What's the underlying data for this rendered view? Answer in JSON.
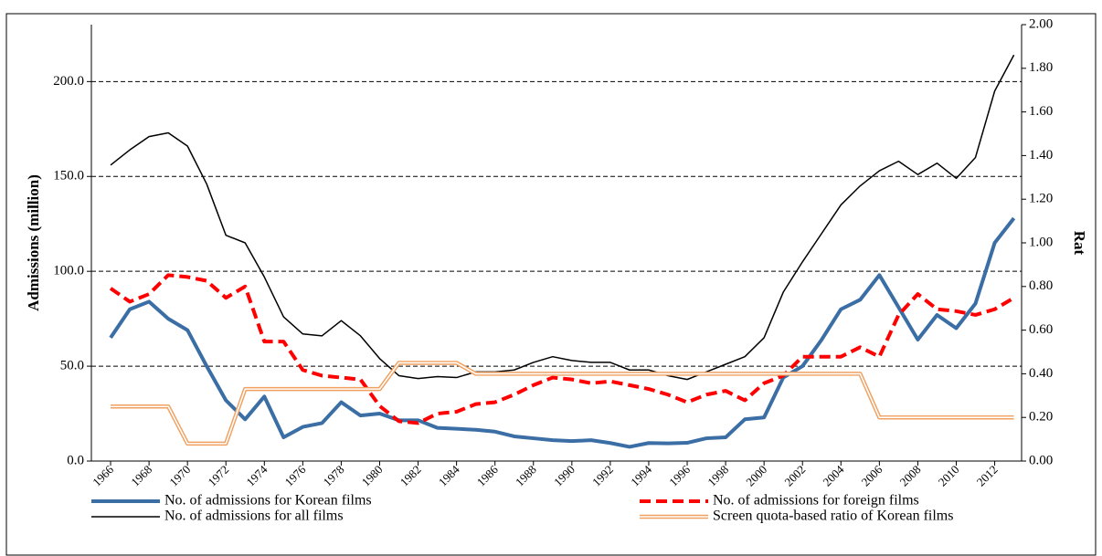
{
  "chart_data": {
    "type": "line",
    "y_label": "Admissions (million)",
    "y2_label": "Rat",
    "x": [
      1966,
      1967,
      1968,
      1969,
      1970,
      1971,
      1972,
      1973,
      1974,
      1975,
      1976,
      1977,
      1978,
      1979,
      1980,
      1981,
      1982,
      1983,
      1984,
      1985,
      1986,
      1987,
      1988,
      1989,
      1990,
      1991,
      1992,
      1993,
      1994,
      1995,
      1996,
      1997,
      1998,
      1999,
      2000,
      2001,
      2002,
      2003,
      2004,
      2005,
      2006,
      2007,
      2008,
      2009,
      2010,
      2011,
      2012,
      2013
    ],
    "xlim": [
      1965,
      2013.4
    ],
    "xticks": [
      1966,
      1968,
      1970,
      1972,
      1974,
      1976,
      1978,
      1980,
      1982,
      1984,
      1986,
      1988,
      1990,
      1992,
      1994,
      1996,
      1998,
      2000,
      2002,
      2004,
      2006,
      2008,
      2010,
      2012
    ],
    "ylim": [
      0,
      230
    ],
    "yticks": [
      {
        "value": 0,
        "label": "0.0"
      },
      {
        "value": 50,
        "label": "50.0"
      },
      {
        "value": 100,
        "label": "100.0"
      },
      {
        "value": 150,
        "label": "150.0"
      },
      {
        "value": 200,
        "label": "200.0"
      }
    ],
    "y2lim": [
      0,
      2
    ],
    "y2ticks": [
      {
        "value": 0,
        "label": "0.00"
      },
      {
        "value": 0.2,
        "label": "0.20"
      },
      {
        "value": 0.4,
        "label": "0.40"
      },
      {
        "value": 0.6,
        "label": "0.60"
      },
      {
        "value": 0.8,
        "label": "0.80"
      },
      {
        "value": 1,
        "label": "1.00"
      },
      {
        "value": 1.2,
        "label": "1.20"
      },
      {
        "value": 1.4,
        "label": "1.40"
      },
      {
        "value": 1.6,
        "label": "1.60"
      },
      {
        "value": 1.8,
        "label": "1.80"
      },
      {
        "value": 2,
        "label": "2.00"
      }
    ],
    "grid": true,
    "series": [
      {
        "name": "No. of admissions for Korean films",
        "color": "#3a6ea5",
        "style": "solid",
        "values": [
          65,
          80,
          84,
          75,
          69,
          50,
          32,
          22,
          34,
          12.5,
          18,
          20,
          31,
          24,
          25,
          21.5,
          21.5,
          17.5,
          17,
          16.5,
          15.5,
          13,
          12,
          11,
          10.5,
          11,
          9.5,
          7.5,
          9.5,
          9.3,
          9.6,
          12,
          12.5,
          22,
          23,
          44,
          50,
          64,
          80,
          85,
          98,
          81,
          64,
          77,
          70,
          83,
          115,
          128
        ]
      },
      {
        "name": "No. of admissions for foreign films",
        "color": "#ff0000",
        "style": "dashed",
        "values": [
          91,
          84,
          88,
          98,
          97,
          95,
          86,
          92,
          63,
          63,
          48,
          45,
          44,
          43,
          29,
          21,
          20,
          25,
          26,
          30,
          31,
          35,
          40,
          44,
          43,
          41,
          42,
          40,
          38,
          35,
          31,
          35,
          37,
          32,
          41,
          45,
          55,
          55,
          55,
          60,
          55,
          77,
          88,
          80,
          79,
          77,
          80,
          86
        ]
      },
      {
        "name": "No. of admissions for all films",
        "color": "#000000",
        "style": "thin",
        "values": [
          156,
          164,
          171,
          173,
          166,
          146,
          119,
          115,
          97,
          76,
          67,
          66,
          74,
          66,
          54,
          45,
          43.5,
          44.5,
          44,
          47,
          47,
          48,
          52,
          55,
          53,
          52,
          52,
          48,
          48,
          45,
          43,
          47,
          51,
          55,
          65,
          89,
          105,
          120,
          135,
          145,
          153,
          158,
          151,
          157,
          149,
          160,
          195,
          214
        ]
      },
      {
        "name": "Screen quota-based ratio of Korean films",
        "color": "#f0a060",
        "style": "double",
        "axis": "y2",
        "values": [
          0.25,
          0.25,
          0.25,
          0.25,
          0.08,
          0.08,
          0.08,
          0.33,
          0.33,
          0.33,
          0.33,
          0.33,
          0.33,
          0.33,
          0.33,
          0.45,
          0.45,
          0.45,
          0.45,
          0.4,
          0.4,
          0.4,
          0.4,
          0.4,
          0.4,
          0.4,
          0.4,
          0.4,
          0.4,
          0.4,
          0.4,
          0.4,
          0.4,
          0.4,
          0.4,
          0.4,
          0.4,
          0.4,
          0.4,
          0.4,
          0.2,
          0.2,
          0.2,
          0.2,
          0.2,
          0.2,
          0.2,
          0.2
        ]
      }
    ]
  }
}
